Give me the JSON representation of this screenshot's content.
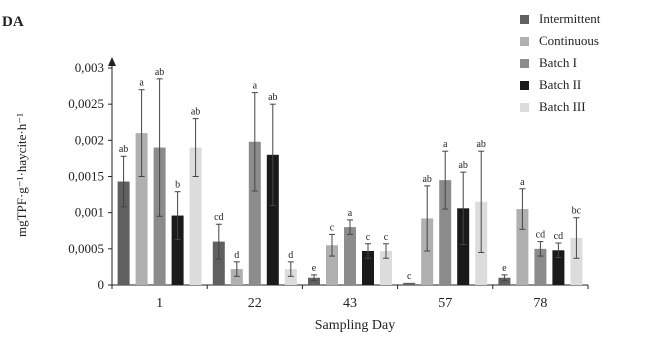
{
  "chart_data": {
    "type": "bar",
    "title": "DA",
    "xlabel": "Sampling Day",
    "ylabel": "mgTPF·g⁻¹·haycite·h⁻¹",
    "ylim": [
      0,
      0.003
    ],
    "yticks": [
      0,
      0.0005,
      0.001,
      0.0015,
      0.002,
      0.0025,
      0.003
    ],
    "ytick_labels": [
      "0",
      "0,0005",
      "0,001",
      "0,0015",
      "0,002",
      "0,0025",
      "0,003"
    ],
    "categories": [
      "1",
      "22",
      "43",
      "57",
      "78"
    ],
    "legend_position": "top-right",
    "grid": false,
    "series": [
      {
        "name": "Intermittent",
        "color": "#606060",
        "values": [
          0.00143,
          0.0006,
          0.0001,
          3e-05,
          0.0001
        ],
        "errors": [
          0.00035,
          0.00024,
          4e-05,
          0.0,
          4e-05
        ],
        "labels": [
          "ab",
          "cd",
          "e",
          "c",
          "e"
        ]
      },
      {
        "name": "Continuous",
        "color": "#b0b0b0",
        "values": [
          0.0021,
          0.00022,
          0.00055,
          0.00092,
          0.00105
        ],
        "errors": [
          0.0006,
          0.0001,
          0.00015,
          0.00045,
          0.00028
        ],
        "labels": [
          "a",
          "d",
          "c",
          "ab",
          "a"
        ]
      },
      {
        "name": "Batch I",
        "color": "#8c8c8c",
        "values": [
          0.0019,
          0.00198,
          0.0008,
          0.00145,
          0.0005
        ],
        "errors": [
          0.00095,
          0.00068,
          0.0001,
          0.0004,
          0.0001
        ],
        "labels": [
          "ab",
          "a",
          "a",
          "a",
          "cd"
        ]
      },
      {
        "name": "Batch II",
        "color": "#1a1a1a",
        "values": [
          0.00096,
          0.0018,
          0.00047,
          0.00106,
          0.00048
        ],
        "errors": [
          0.00033,
          0.0007,
          0.0001,
          0.0005,
          0.0001
        ],
        "labels": [
          "b",
          "ab",
          "c",
          "ab",
          "cd"
        ]
      },
      {
        "name": "Batch III",
        "color": "#dcdcdc",
        "values": [
          0.0019,
          0.00022,
          0.00047,
          0.00115,
          0.00065
        ],
        "errors": [
          0.0004,
          0.0001,
          0.0001,
          0.0007,
          0.00028
        ],
        "labels": [
          "ab",
          "d",
          "c",
          "ab",
          "bc"
        ]
      }
    ]
  }
}
